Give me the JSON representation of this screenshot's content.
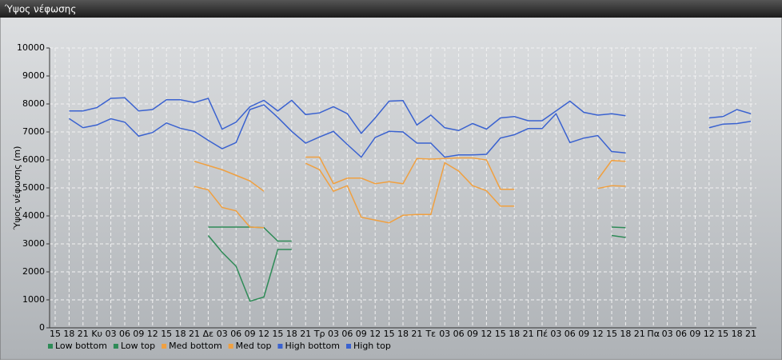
{
  "chart_data": {
    "type": "line",
    "title": "Ύψος νέφωσης",
    "y_label": "Ύψος νέφωσης (m)",
    "categories": [
      "15",
      "18",
      "21",
      "Κυ",
      "03",
      "06",
      "09",
      "12",
      "15",
      "18",
      "21",
      "Δε",
      "03",
      "06",
      "09",
      "12",
      "15",
      "18",
      "21",
      "Τρ",
      "03",
      "06",
      "09",
      "12",
      "15",
      "18",
      "21",
      "Τε",
      "03",
      "06",
      "09",
      "12",
      "15",
      "18",
      "21",
      "Πέ",
      "03",
      "06",
      "09",
      "12",
      "15",
      "18",
      "21",
      "Πα",
      "03",
      "06",
      "09",
      "12",
      "15",
      "18",
      "21"
    ],
    "series": [
      {
        "name": "Low bottom",
        "color": "#2e8b57",
        "values": [
          null,
          null,
          null,
          null,
          null,
          null,
          null,
          null,
          null,
          null,
          null,
          3300,
          2700,
          2200,
          950,
          1100,
          2800,
          2800,
          null,
          null,
          null,
          null,
          null,
          null,
          null,
          null,
          null,
          null,
          null,
          null,
          null,
          null,
          null,
          null,
          null,
          null,
          null,
          null,
          null,
          null,
          3300,
          3230,
          null,
          null,
          null,
          null,
          null,
          null,
          null,
          null,
          null
        ]
      },
      {
        "name": "Low top",
        "color": "#2e8b57",
        "values": [
          null,
          null,
          null,
          null,
          null,
          null,
          null,
          null,
          null,
          null,
          null,
          3600,
          3600,
          3600,
          3600,
          3580,
          3100,
          3100,
          null,
          null,
          null,
          null,
          null,
          null,
          null,
          null,
          null,
          null,
          null,
          null,
          null,
          null,
          null,
          null,
          null,
          null,
          null,
          null,
          null,
          null,
          3600,
          3580,
          null,
          null,
          null,
          null,
          null,
          null,
          null,
          null,
          null
        ]
      },
      {
        "name": "Med bottom",
        "color": "#f0a040",
        "values": [
          null,
          null,
          null,
          null,
          null,
          null,
          null,
          null,
          null,
          null,
          5050,
          4930,
          4300,
          4180,
          3600,
          3580,
          null,
          null,
          5880,
          5650,
          4880,
          5080,
          3950,
          3850,
          3750,
          4020,
          4050,
          4050,
          5900,
          5600,
          5080,
          4900,
          4350,
          4350,
          null,
          null,
          null,
          null,
          null,
          4980,
          5080,
          5060,
          null,
          null,
          null,
          null,
          null,
          null,
          null,
          null,
          null
        ]
      },
      {
        "name": "Med top",
        "color": "#f0a040",
        "values": [
          null,
          null,
          null,
          null,
          null,
          null,
          null,
          null,
          null,
          null,
          5950,
          5800,
          5650,
          5450,
          5250,
          4880,
          null,
          null,
          6100,
          6100,
          5150,
          5350,
          5350,
          5150,
          5220,
          5150,
          6050,
          6030,
          6050,
          6070,
          6070,
          6000,
          4950,
          4950,
          null,
          null,
          null,
          null,
          null,
          5300,
          5980,
          5950,
          null,
          null,
          null,
          null,
          null,
          null,
          null,
          null,
          null
        ]
      },
      {
        "name": "High bottom",
        "color": "#3a62d0",
        "values": [
          null,
          7480,
          7150,
          7250,
          7470,
          7350,
          6850,
          6980,
          7320,
          7130,
          7020,
          6700,
          6400,
          6620,
          7800,
          7970,
          7520,
          7020,
          6600,
          6820,
          7020,
          6550,
          6100,
          6800,
          7020,
          7000,
          6600,
          6600,
          6100,
          6180,
          6180,
          6200,
          6780,
          6900,
          7120,
          7120,
          7650,
          6620,
          6780,
          6870,
          6300,
          6250,
          null,
          null,
          null,
          null,
          null,
          7150,
          7280,
          7300,
          7380
        ]
      },
      {
        "name": "High top",
        "color": "#3a62d0",
        "values": [
          null,
          7750,
          7750,
          7870,
          8200,
          8220,
          7750,
          7800,
          8150,
          8150,
          8050,
          8200,
          7100,
          7350,
          7900,
          8130,
          7750,
          8130,
          7620,
          7680,
          7900,
          7650,
          6950,
          7500,
          8100,
          8120,
          7250,
          7600,
          7150,
          7050,
          7300,
          7100,
          7500,
          7550,
          7400,
          7400,
          7750,
          8100,
          7700,
          7600,
          7650,
          7580,
          null,
          null,
          null,
          null,
          null,
          7500,
          7550,
          7800,
          7650
        ]
      }
    ],
    "ylim": [
      0,
      10000
    ],
    "yticks": [
      0,
      1000,
      2000,
      3000,
      4000,
      5000,
      6000,
      7000,
      8000,
      9000,
      10000
    ],
    "grid": true,
    "legend": "bottom-left"
  }
}
